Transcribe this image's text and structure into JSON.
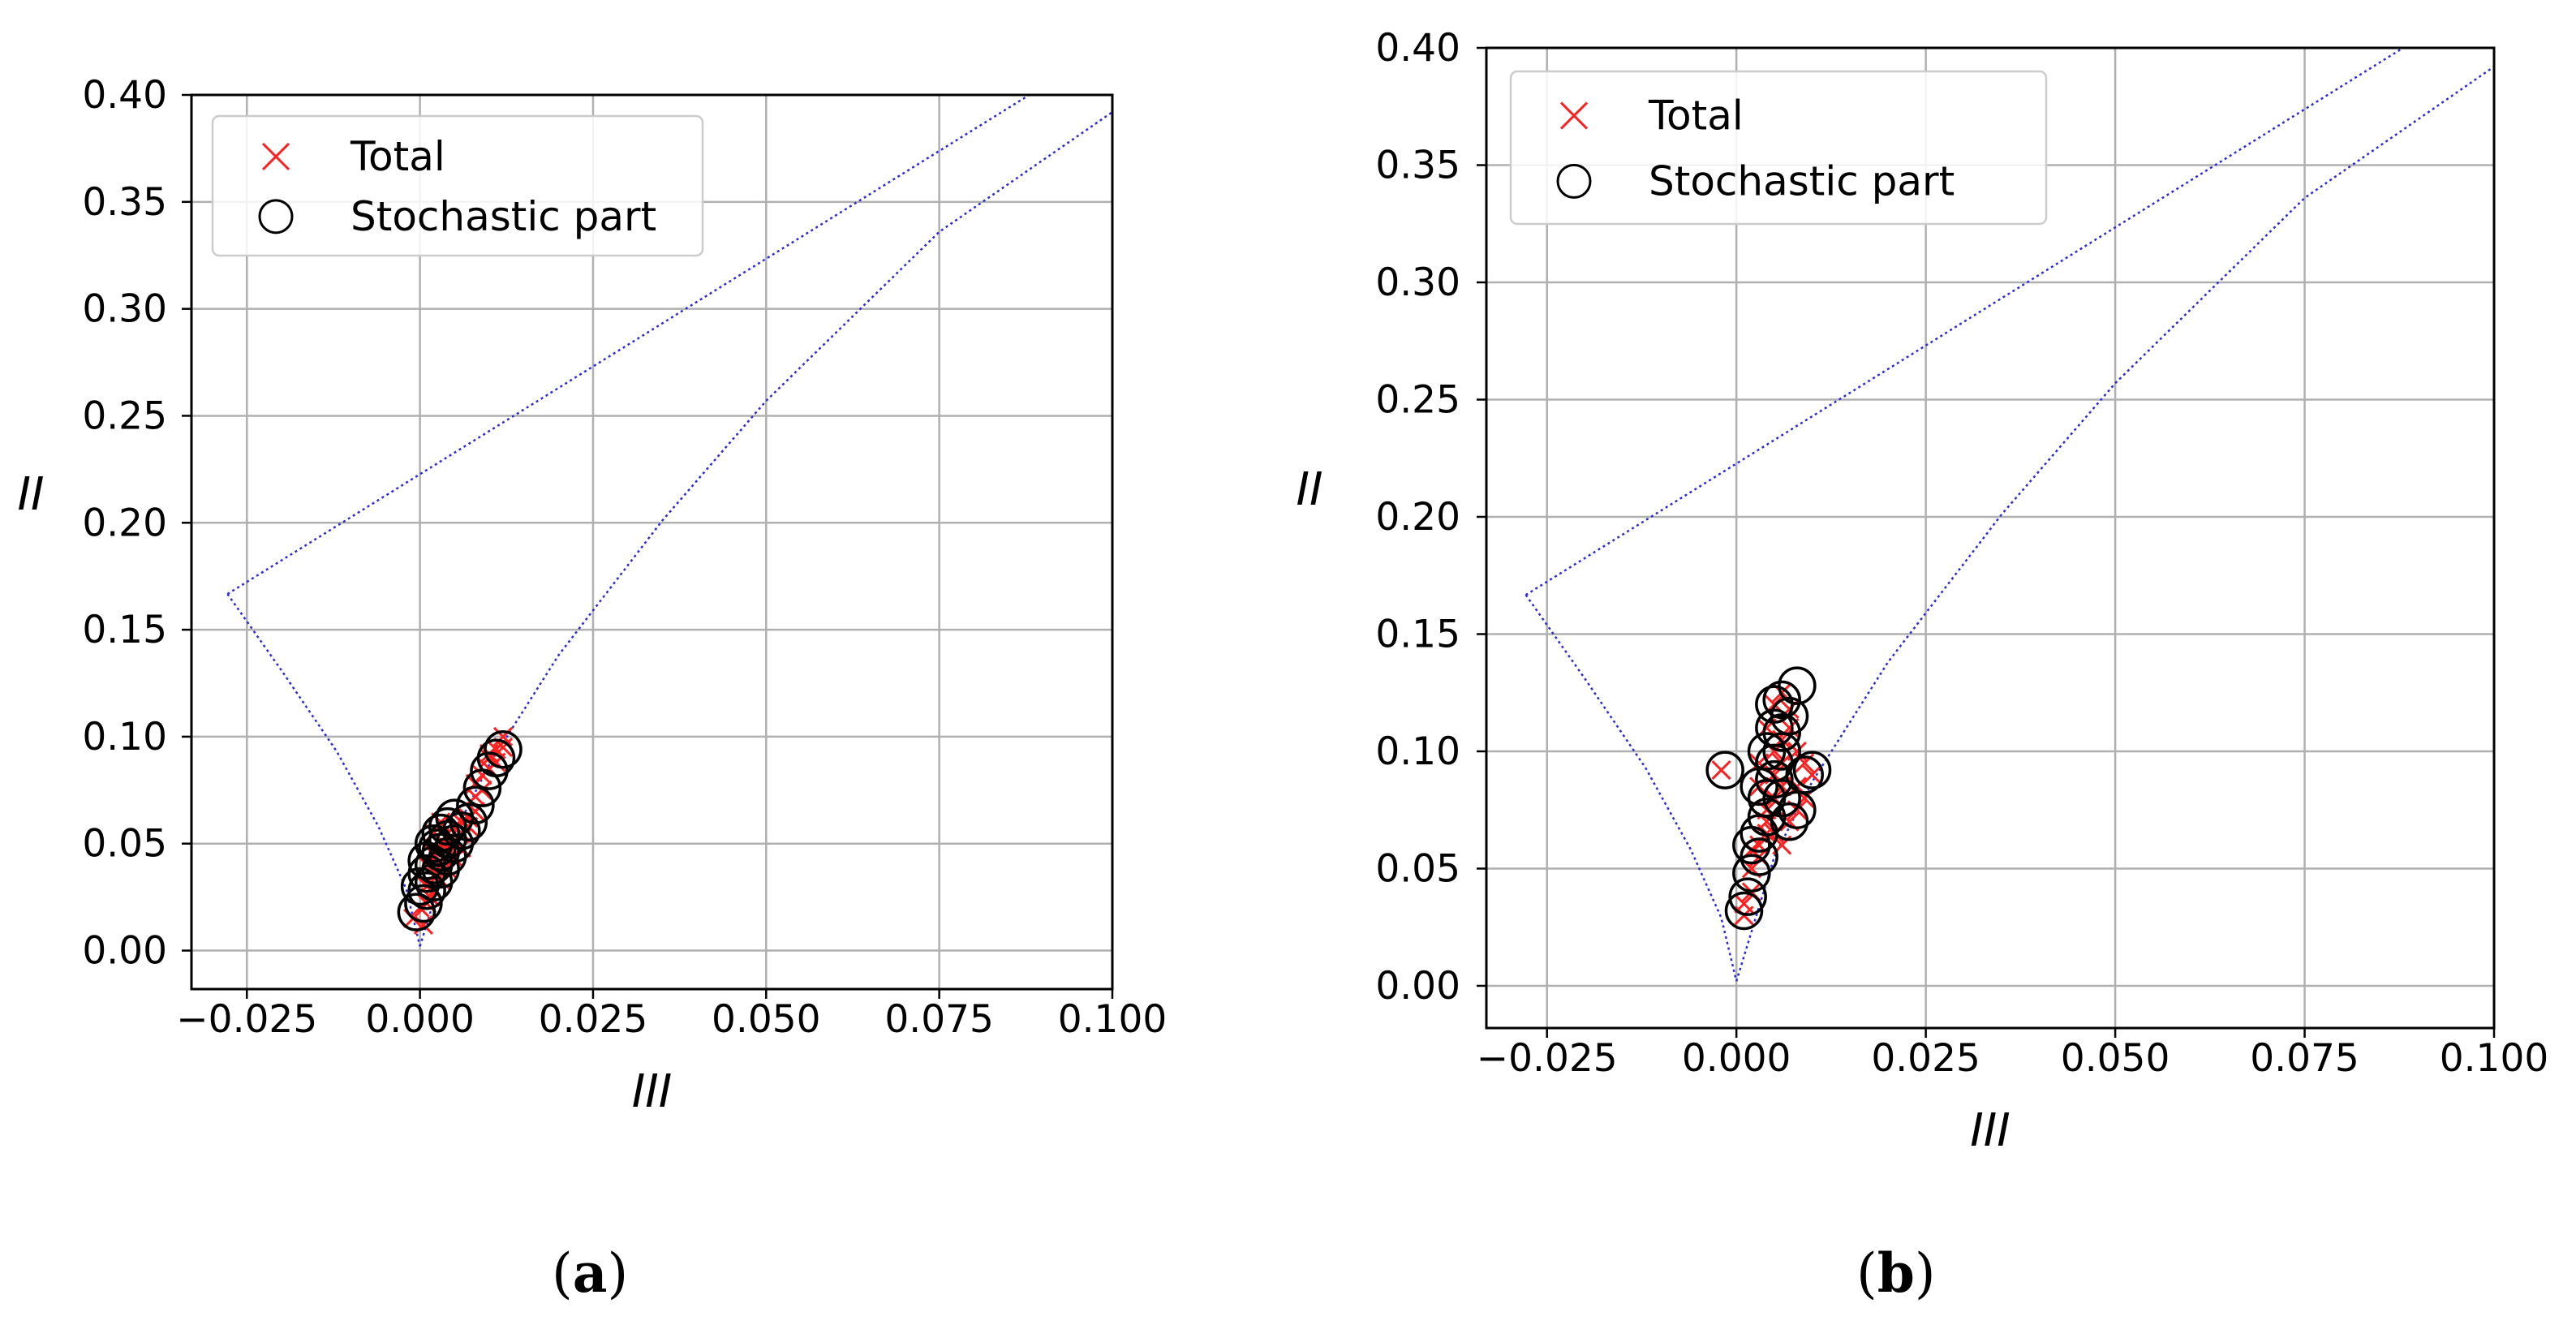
{
  "colors": {
    "total_marker": "#ff2020",
    "stochastic_marker": "#000000",
    "boundary_line": "#2a2ae0",
    "grid": "#b0b0b0"
  },
  "chart_data": [
    {
      "panel": "a",
      "type": "scatter",
      "xlabel": "III",
      "ylabel": "II",
      "xlim": [
        -0.033,
        0.1
      ],
      "ylim": [
        -0.018,
        0.4
      ],
      "xticks": [
        "−0.025",
        "0.000",
        "0.025",
        "0.050",
        "0.075",
        "0.100"
      ],
      "yticks": [
        "0.00",
        "0.05",
        "0.10",
        "0.15",
        "0.20",
        "0.25",
        "0.30",
        "0.35",
        "0.40"
      ],
      "grid": true,
      "legend_position": "top-left",
      "legend": [
        "Total",
        "Stochastic part"
      ],
      "series": [
        {
          "name": "Total",
          "marker": "x",
          "color": "#ff2020",
          "x": [
            -0.001,
            0.0,
            0.001,
            0.002,
            0.002,
            0.003,
            0.003,
            0.004,
            0.004,
            0.005,
            0.005,
            0.006,
            0.006,
            0.007,
            0.007,
            0.008,
            0.008,
            0.009,
            0.009,
            0.01,
            0.01,
            0.011,
            0.011,
            0.012,
            0.012,
            0.001,
            0.002,
            0.003,
            0.004,
            0.005,
            0.003,
            0.001,
            0.002,
            0.004,
            0.006,
            0.008,
            0.01,
            0.0005,
            0.0015,
            0.0025
          ],
          "y": [
            0.015,
            0.02,
            0.022,
            0.028,
            0.035,
            0.033,
            0.04,
            0.038,
            0.045,
            0.043,
            0.05,
            0.048,
            0.055,
            0.058,
            0.062,
            0.065,
            0.072,
            0.075,
            0.082,
            0.085,
            0.09,
            0.088,
            0.094,
            0.095,
            0.1,
            0.04,
            0.045,
            0.05,
            0.052,
            0.058,
            0.06,
            0.03,
            0.055,
            0.048,
            0.06,
            0.078,
            0.092,
            0.012,
            0.025,
            0.046
          ]
        },
        {
          "name": "Stochastic part",
          "marker": "o",
          "color": "#000000",
          "x": [
            -0.0005,
            0.0005,
            0.001,
            0.002,
            0.002,
            0.003,
            0.003,
            0.004,
            0.004,
            0.005,
            0.006,
            0.007,
            0.008,
            0.009,
            0.01,
            0.011,
            0.012,
            0.001,
            0.002,
            0.003,
            0.004,
            0.005,
            0.0,
            0.001,
            0.0025
          ],
          "y": [
            0.018,
            0.022,
            0.028,
            0.032,
            0.04,
            0.038,
            0.046,
            0.044,
            0.052,
            0.05,
            0.056,
            0.06,
            0.068,
            0.076,
            0.084,
            0.09,
            0.094,
            0.042,
            0.05,
            0.055,
            0.058,
            0.062,
            0.03,
            0.036,
            0.048
          ]
        }
      ],
      "boundary": {
        "name": "Lumley triangle",
        "color": "#2a2ae0",
        "two_component_line": {
          "x": [
            -0.0278,
            0.088
          ],
          "y": [
            0.1667,
            0.4
          ]
        },
        "axisymmetric_left": [
          [
            -0.0278,
            0.1667
          ],
          [
            -0.02,
            0.131
          ],
          [
            -0.012,
            0.093
          ],
          [
            -0.006,
            0.058
          ],
          [
            -0.002,
            0.029
          ],
          [
            0.0,
            0.002
          ]
        ],
        "axisymmetric_right": [
          [
            0.0,
            0.002
          ],
          [
            0.005,
            0.055
          ],
          [
            0.01,
            0.087
          ],
          [
            0.02,
            0.138
          ],
          [
            0.035,
            0.201
          ],
          [
            0.05,
            0.257
          ],
          [
            0.075,
            0.336
          ],
          [
            0.1,
            0.392
          ]
        ]
      }
    },
    {
      "panel": "b",
      "type": "scatter",
      "xlabel": "III",
      "ylabel": "II",
      "xlim": [
        -0.033,
        0.1
      ],
      "ylim": [
        -0.018,
        0.4
      ],
      "xticks": [
        "−0.025",
        "0.000",
        "0.025",
        "0.050",
        "0.075",
        "0.100"
      ],
      "yticks": [
        "0.00",
        "0.05",
        "0.10",
        "0.15",
        "0.20",
        "0.25",
        "0.30",
        "0.35",
        "0.40"
      ],
      "grid": true,
      "legend_position": "top-left",
      "legend": [
        "Total",
        "Stochastic part"
      ],
      "series": [
        {
          "name": "Total",
          "marker": "x",
          "color": "#ff2020",
          "x": [
            -0.002,
            0.001,
            0.001,
            0.002,
            0.002,
            0.003,
            0.003,
            0.004,
            0.004,
            0.005,
            0.005,
            0.006,
            0.006,
            0.007,
            0.007,
            0.008,
            0.008,
            0.009,
            0.01,
            0.004,
            0.005,
            0.006,
            0.003,
            0.002,
            0.006,
            0.007,
            0.008,
            0.005,
            0.004,
            0.003,
            0.009,
            0.006,
            0.005
          ],
          "y": [
            0.092,
            0.03,
            0.035,
            0.04,
            0.05,
            0.055,
            0.06,
            0.065,
            0.075,
            0.08,
            0.09,
            0.095,
            0.105,
            0.11,
            0.118,
            0.1,
            0.085,
            0.095,
            0.09,
            0.07,
            0.12,
            0.125,
            0.085,
            0.058,
            0.06,
            0.07,
            0.075,
            0.1,
            0.11,
            0.095,
            0.08,
            0.085,
            0.065
          ]
        },
        {
          "name": "Stochastic part",
          "marker": "o",
          "color": "#000000",
          "x": [
            -0.0015,
            0.001,
            0.0015,
            0.002,
            0.003,
            0.003,
            0.004,
            0.004,
            0.005,
            0.005,
            0.006,
            0.006,
            0.007,
            0.008,
            0.009,
            0.01,
            0.005,
            0.006,
            0.004,
            0.007,
            0.003,
            0.002,
            0.006,
            0.008,
            0.005
          ],
          "y": [
            0.092,
            0.032,
            0.038,
            0.048,
            0.055,
            0.065,
            0.072,
            0.08,
            0.088,
            0.095,
            0.1,
            0.108,
            0.115,
            0.128,
            0.09,
            0.092,
            0.12,
            0.122,
            0.1,
            0.07,
            0.085,
            0.06,
            0.08,
            0.075,
            0.11
          ]
        }
      ],
      "boundary": {
        "name": "Lumley triangle",
        "color": "#2a2ae0",
        "two_component_line": {
          "x": [
            -0.0278,
            0.088
          ],
          "y": [
            0.1667,
            0.4
          ]
        },
        "axisymmetric_left": [
          [
            -0.0278,
            0.1667
          ],
          [
            -0.02,
            0.131
          ],
          [
            -0.012,
            0.093
          ],
          [
            -0.006,
            0.058
          ],
          [
            -0.002,
            0.029
          ],
          [
            0.0,
            0.002
          ]
        ],
        "axisymmetric_right": [
          [
            0.0,
            0.002
          ],
          [
            0.005,
            0.055
          ],
          [
            0.01,
            0.087
          ],
          [
            0.02,
            0.138
          ],
          [
            0.035,
            0.201
          ],
          [
            0.05,
            0.257
          ],
          [
            0.075,
            0.336
          ],
          [
            0.1,
            0.392
          ]
        ]
      }
    }
  ],
  "captions": [
    {
      "open": "(",
      "letter": "a",
      "close": ")"
    },
    {
      "open": "(",
      "letter": "b",
      "close": ")"
    }
  ]
}
